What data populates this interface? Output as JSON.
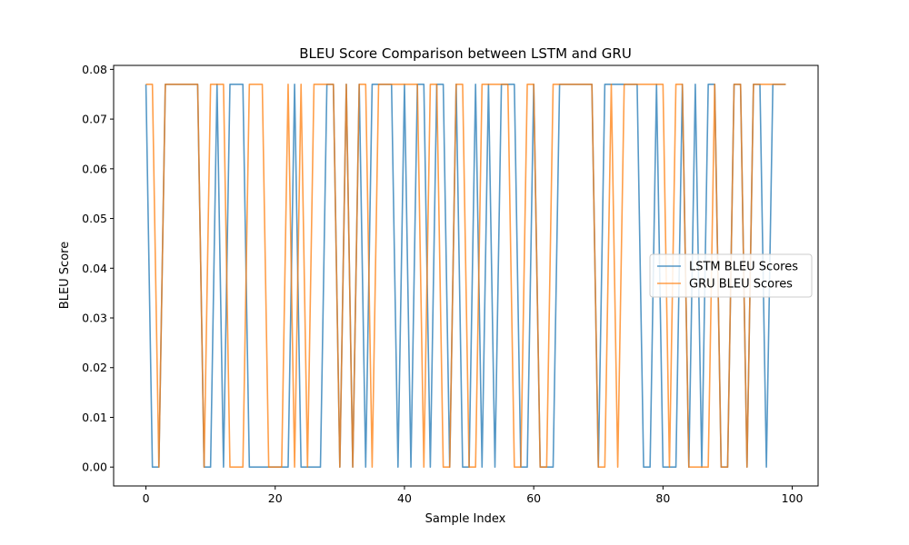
{
  "chart_data": {
    "type": "line",
    "title": "BLEU Score Comparison between LSTM and GRU",
    "xlabel": "Sample Index",
    "ylabel": "BLEU Score",
    "xlim": [
      -5,
      104
    ],
    "ylim": [
      -0.0038,
      0.0808
    ],
    "xticks": [
      0,
      20,
      40,
      60,
      80,
      100
    ],
    "yticks": [
      0.0,
      0.01,
      0.02,
      0.03,
      0.04,
      0.05,
      0.06,
      0.07,
      0.08
    ],
    "ytick_labels": [
      "0.00",
      "0.01",
      "0.02",
      "0.03",
      "0.04",
      "0.05",
      "0.06",
      "0.07",
      "0.08"
    ],
    "grid": false,
    "legend_position": "center-right",
    "x": [
      0,
      1,
      2,
      3,
      4,
      5,
      6,
      7,
      8,
      9,
      10,
      11,
      12,
      13,
      14,
      15,
      16,
      17,
      18,
      19,
      20,
      21,
      22,
      23,
      24,
      25,
      26,
      27,
      28,
      29,
      30,
      31,
      32,
      33,
      34,
      35,
      36,
      37,
      38,
      39,
      40,
      41,
      42,
      43,
      44,
      45,
      46,
      47,
      48,
      49,
      50,
      51,
      52,
      53,
      54,
      55,
      56,
      57,
      58,
      59,
      60,
      61,
      62,
      63,
      64,
      65,
      66,
      67,
      68,
      69,
      70,
      71,
      72,
      73,
      74,
      75,
      76,
      77,
      78,
      79,
      80,
      81,
      82,
      83,
      84,
      85,
      86,
      87,
      88,
      89,
      90,
      91,
      92,
      93,
      94,
      95,
      96,
      97,
      98,
      99
    ],
    "series": [
      {
        "name": "LSTM BLEU Scores",
        "color": "#1f77b4",
        "values": [
          0.077,
          0,
          0,
          0.077,
          0.077,
          0.077,
          0.077,
          0.077,
          0.077,
          0,
          0,
          0.077,
          0,
          0.077,
          0.077,
          0.077,
          0,
          0,
          0,
          0,
          0,
          0,
          0,
          0.077,
          0,
          0,
          0,
          0,
          0.077,
          0.077,
          0,
          0.077,
          0,
          0.077,
          0,
          0.077,
          0.077,
          0.077,
          0.077,
          0,
          0.077,
          0,
          0.077,
          0.077,
          0,
          0.077,
          0.077,
          0,
          0.077,
          0,
          0,
          0.077,
          0,
          0.077,
          0,
          0.077,
          0.077,
          0.077,
          0,
          0,
          0.077,
          0,
          0,
          0,
          0.077,
          0.077,
          0.077,
          0.077,
          0.077,
          0.077,
          0,
          0.077,
          0.077,
          0.077,
          0.077,
          0.077,
          0.077,
          0,
          0,
          0.077,
          0,
          0,
          0,
          0.077,
          0,
          0.077,
          0,
          0.077,
          0.077,
          0,
          0,
          0.077,
          0.077,
          0,
          0.077,
          0.077,
          0,
          0.077,
          0.077,
          0.077
        ]
      },
      {
        "name": "GRU BLEU Scores",
        "color": "#ff7f0e",
        "values": [
          0.077,
          0.077,
          0,
          0.077,
          0.077,
          0.077,
          0.077,
          0.077,
          0.077,
          0,
          0.077,
          0.077,
          0.077,
          0,
          0,
          0,
          0.077,
          0.077,
          0.077,
          0,
          0,
          0,
          0.077,
          0,
          0.077,
          0,
          0.077,
          0.077,
          0.077,
          0.077,
          0,
          0.077,
          0,
          0.077,
          0.077,
          0,
          0.077,
          0.077,
          0.077,
          0.077,
          0.077,
          0.077,
          0.077,
          0,
          0.077,
          0.077,
          0,
          0,
          0.077,
          0.077,
          0,
          0,
          0.077,
          0.077,
          0.077,
          0.077,
          0.077,
          0,
          0,
          0.077,
          0.077,
          0,
          0,
          0.077,
          0.077,
          0.077,
          0.077,
          0.077,
          0.077,
          0.077,
          0,
          0,
          0.077,
          0,
          0.077,
          0.077,
          0.077,
          0.077,
          0.077,
          0.077,
          0.077,
          0,
          0.077,
          0.077,
          0,
          0,
          0,
          0,
          0.077,
          0,
          0,
          0.077,
          0.077,
          0,
          0.077,
          0.077,
          0.077,
          0.077,
          0.077,
          0.077
        ]
      }
    ]
  }
}
